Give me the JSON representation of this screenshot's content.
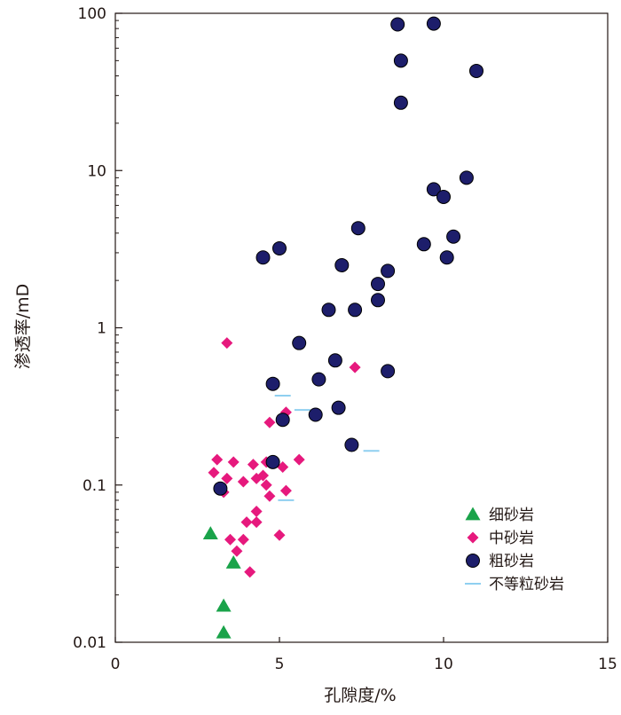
{
  "chart_data": {
    "type": "scatter",
    "xlabel": "孔隙度/%",
    "ylabel": "渗透率/mD",
    "xlim": [
      0,
      15
    ],
    "ylim": [
      0.01,
      100
    ],
    "y_scale": "log",
    "x_ticks": [
      "0",
      "5",
      "10",
      "15"
    ],
    "y_ticks": [
      "0.01",
      "0.1",
      "1",
      "10",
      "100"
    ],
    "grid": false,
    "legend_position": "bottom-right",
    "series": [
      {
        "name": "细砂岩",
        "marker": "triangle",
        "color": "#1aa34a",
        "points": [
          [
            2.9,
            0.049
          ],
          [
            3.6,
            0.032
          ],
          [
            3.3,
            0.017
          ],
          [
            3.3,
            0.0115
          ]
        ]
      },
      {
        "name": "中砂岩",
        "marker": "diamond",
        "color": "#e6197d",
        "points": [
          [
            3.4,
            0.8
          ],
          [
            7.3,
            0.56
          ],
          [
            5.2,
            0.29
          ],
          [
            4.7,
            0.25
          ],
          [
            3.1,
            0.145
          ],
          [
            3.6,
            0.14
          ],
          [
            4.6,
            0.14
          ],
          [
            5.6,
            0.145
          ],
          [
            4.2,
            0.135
          ],
          [
            5.1,
            0.13
          ],
          [
            3.0,
            0.12
          ],
          [
            4.5,
            0.115
          ],
          [
            4.3,
            0.11
          ],
          [
            3.4,
            0.11
          ],
          [
            3.9,
            0.105
          ],
          [
            4.6,
            0.1
          ],
          [
            3.3,
            0.09
          ],
          [
            5.2,
            0.092
          ],
          [
            4.7,
            0.085
          ],
          [
            4.3,
            0.068
          ],
          [
            4.0,
            0.058
          ],
          [
            4.3,
            0.058
          ],
          [
            5.0,
            0.048
          ],
          [
            3.5,
            0.045
          ],
          [
            3.9,
            0.045
          ],
          [
            3.7,
            0.038
          ],
          [
            4.1,
            0.028
          ]
        ]
      },
      {
        "name": "粗砂岩",
        "marker": "circle",
        "color": "#1d1e6b",
        "points": [
          [
            8.6,
            85
          ],
          [
            9.7,
            86
          ],
          [
            8.7,
            50
          ],
          [
            11.0,
            43
          ],
          [
            8.7,
            27
          ],
          [
            10.7,
            9
          ],
          [
            9.7,
            7.6
          ],
          [
            10.0,
            6.8
          ],
          [
            7.4,
            4.3
          ],
          [
            10.3,
            3.8
          ],
          [
            9.4,
            3.4
          ],
          [
            5.0,
            3.2
          ],
          [
            4.5,
            2.8
          ],
          [
            10.1,
            2.8
          ],
          [
            6.9,
            2.5
          ],
          [
            8.3,
            2.3
          ],
          [
            8.0,
            1.9
          ],
          [
            8.0,
            1.5
          ],
          [
            6.5,
            1.3
          ],
          [
            7.3,
            1.3
          ],
          [
            5.6,
            0.8
          ],
          [
            6.7,
            0.62
          ],
          [
            8.3,
            0.53
          ],
          [
            6.2,
            0.47
          ],
          [
            4.8,
            0.44
          ],
          [
            6.8,
            0.31
          ],
          [
            6.1,
            0.28
          ],
          [
            5.1,
            0.26
          ],
          [
            7.2,
            0.18
          ],
          [
            4.8,
            0.14
          ],
          [
            3.2,
            0.095
          ]
        ]
      },
      {
        "name": "不等粒砂岩",
        "marker": "dash",
        "color": "#8fcff0",
        "points": [
          [
            5.1,
            0.37
          ],
          [
            5.7,
            0.3
          ],
          [
            7.8,
            0.165
          ],
          [
            5.2,
            0.08
          ]
        ]
      }
    ]
  }
}
